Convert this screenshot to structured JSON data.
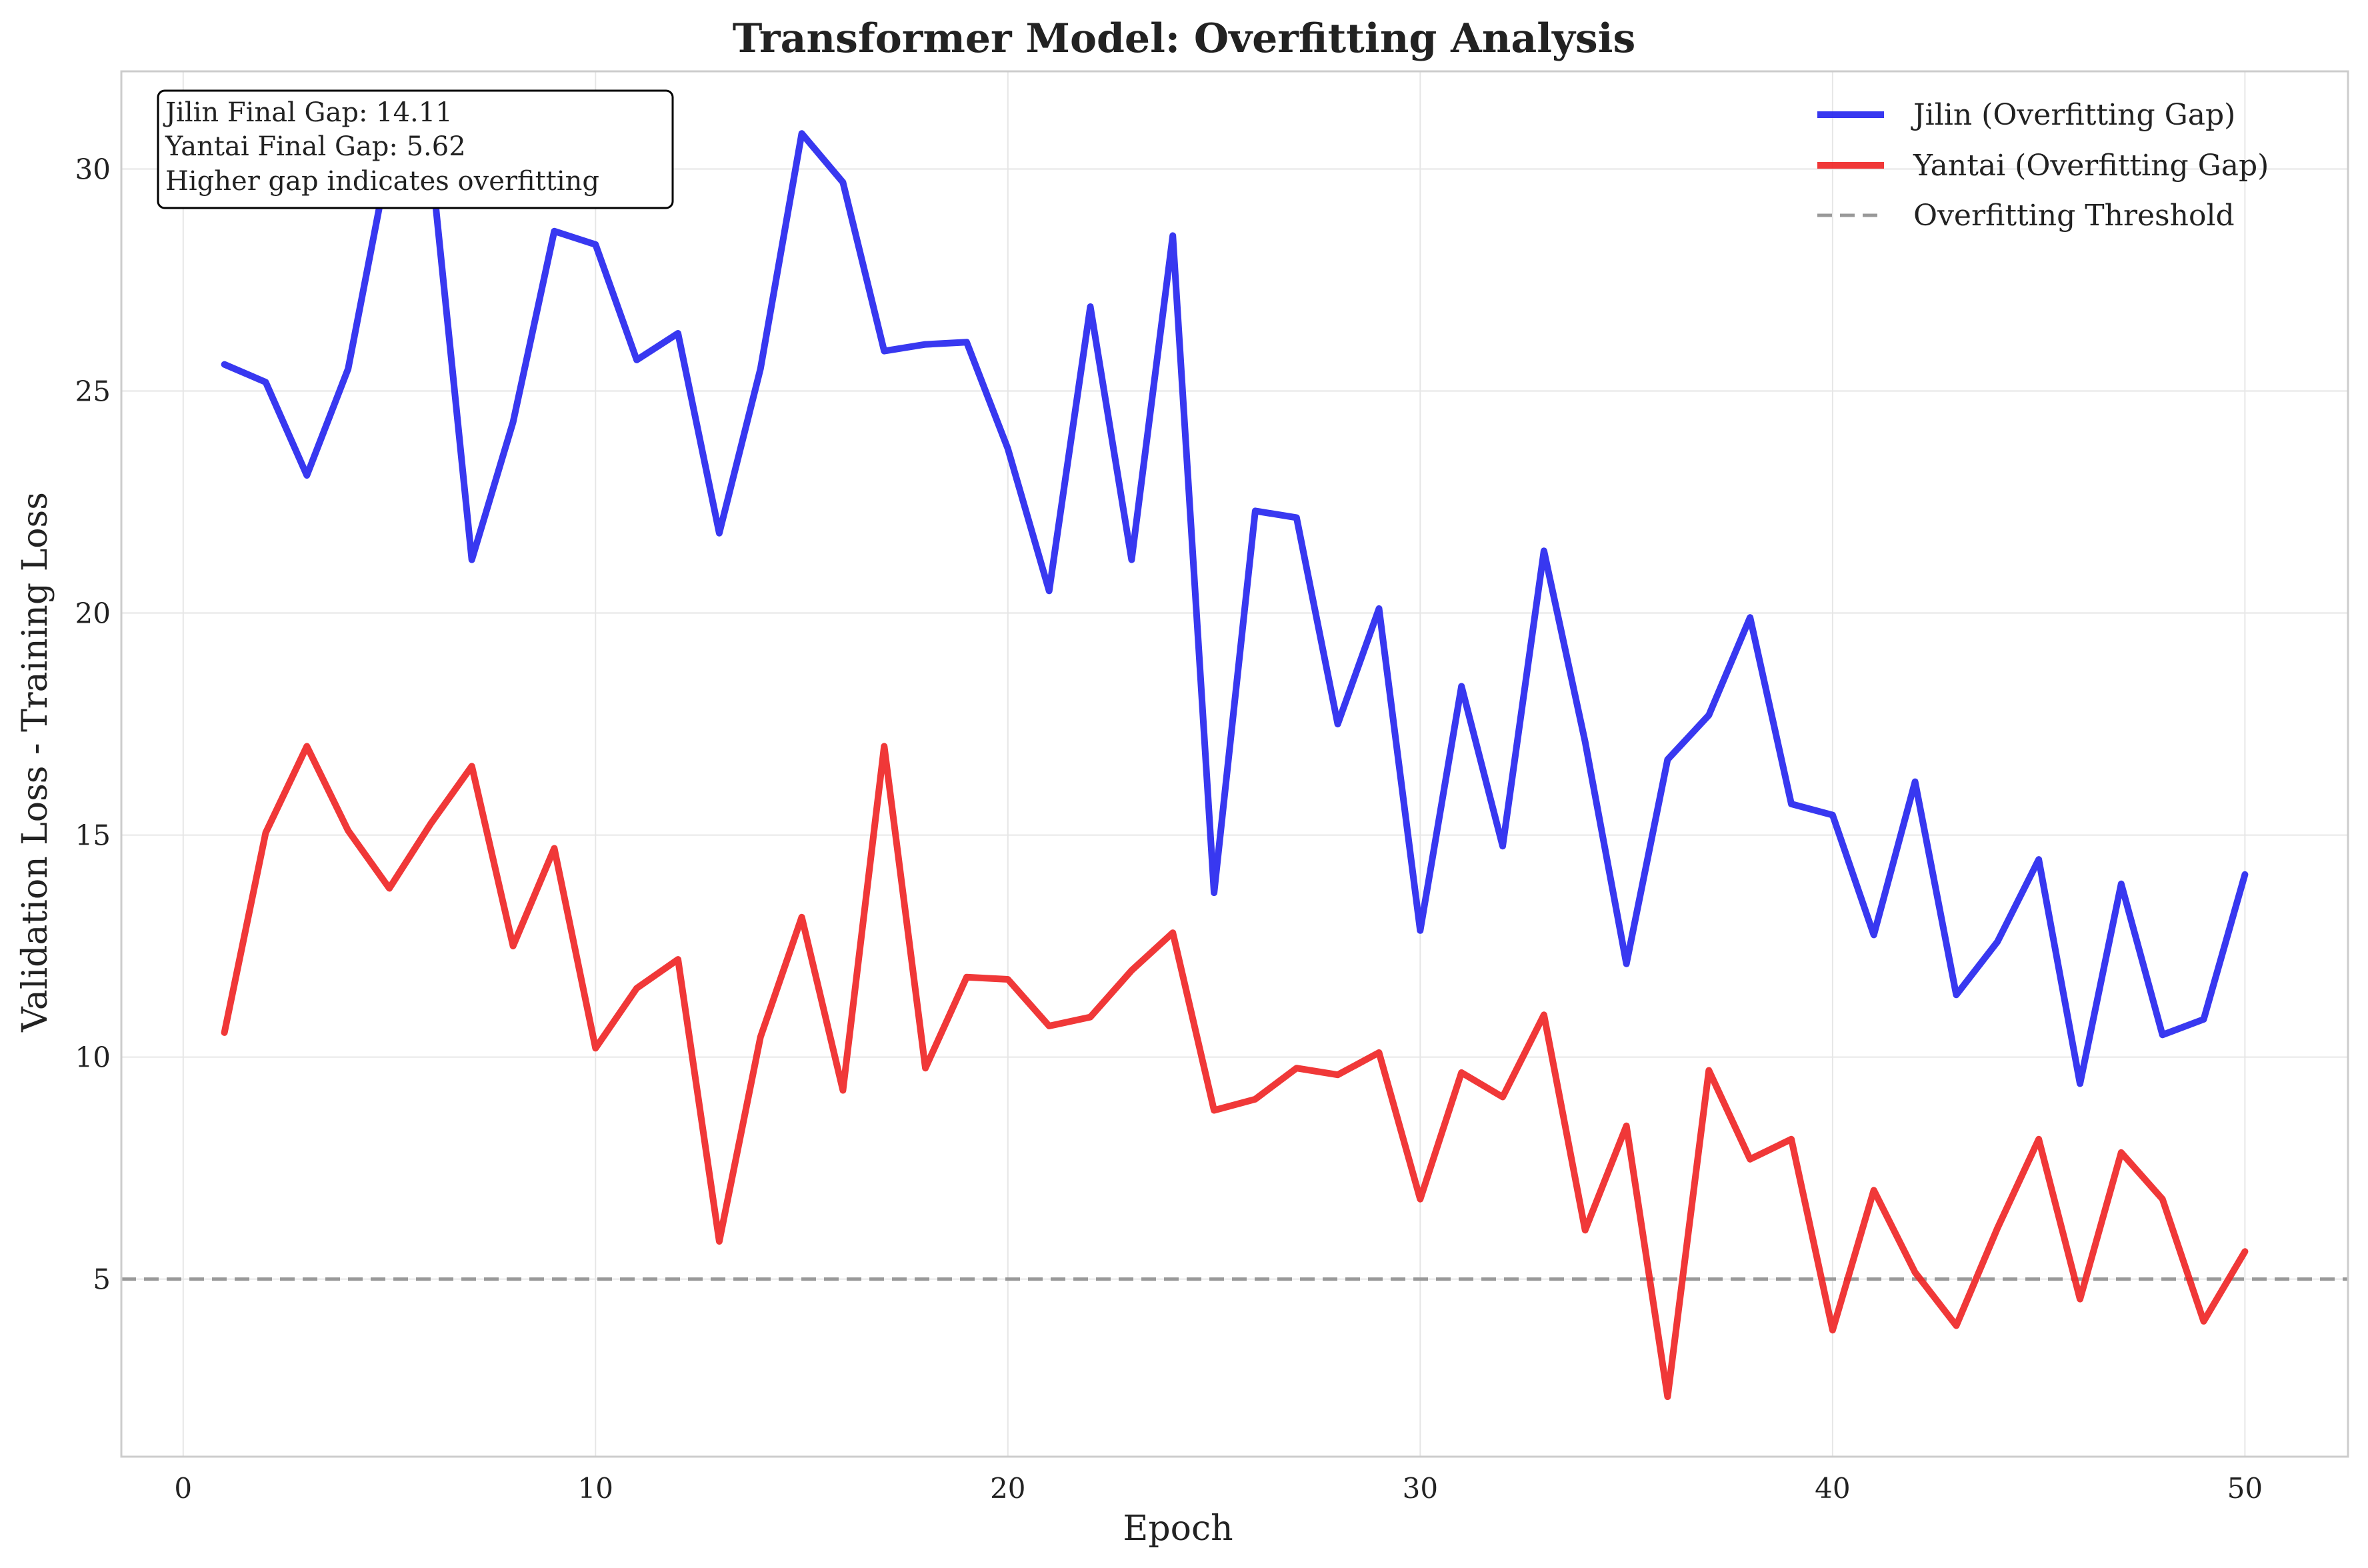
{
  "chart_data": {
    "type": "line",
    "title": "Transformer Model: Overfitting Analysis",
    "xlabel": "Epoch",
    "ylabel": "Validation Loss - Training Loss",
    "xlim": [
      -1.5,
      52.5
    ],
    "ylim": [
      1.0,
      32.2
    ],
    "xticks": [
      0,
      10,
      20,
      30,
      40,
      50
    ],
    "yticks": [
      5,
      10,
      15,
      20,
      25,
      30
    ],
    "grid": true,
    "legend_position": "top-right",
    "x": [
      1,
      2,
      3,
      4,
      5,
      6,
      7,
      8,
      9,
      10,
      11,
      12,
      13,
      14,
      15,
      16,
      17,
      18,
      19,
      20,
      21,
      22,
      23,
      24,
      25,
      26,
      27,
      28,
      29,
      30,
      31,
      32,
      33,
      34,
      35,
      36,
      37,
      38,
      39,
      40,
      41,
      42,
      43,
      44,
      45,
      46,
      47,
      48,
      49,
      50
    ],
    "series": [
      {
        "name": "Jilin (Overfitting Gap)",
        "color": "#2222ee",
        "values": [
          25.6,
          25.2,
          23.1,
          25.5,
          30.3,
          30.3,
          21.2,
          24.3,
          28.6,
          28.3,
          25.7,
          26.3,
          21.8,
          25.5,
          30.8,
          29.7,
          25.9,
          26.05,
          26.1,
          23.7,
          20.5,
          26.9,
          21.2,
          28.5,
          13.7,
          22.3,
          22.15,
          17.5,
          20.1,
          12.85,
          18.35,
          14.75,
          21.4,
          17.1,
          12.1,
          16.7,
          17.7,
          19.9,
          15.7,
          15.45,
          12.75,
          16.2,
          11.4,
          12.6,
          14.45,
          9.4,
          13.9,
          10.5,
          10.85,
          14.11
        ]
      },
      {
        "name": "Yantai (Overfitting Gap)",
        "color": "#ee2222",
        "values": [
          10.55,
          15.05,
          17.0,
          15.1,
          13.8,
          15.25,
          16.55,
          12.5,
          14.7,
          10.2,
          11.55,
          12.2,
          5.85,
          10.45,
          13.15,
          9.25,
          17.0,
          9.75,
          11.8,
          11.75,
          10.7,
          10.9,
          11.95,
          12.8,
          8.8,
          9.05,
          9.75,
          9.6,
          10.1,
          6.8,
          9.65,
          9.1,
          10.95,
          6.1,
          8.45,
          2.35,
          9.7,
          7.7,
          8.15,
          3.85,
          7.0,
          5.15,
          3.95,
          6.15,
          8.15,
          4.55,
          7.85,
          6.8,
          4.05,
          5.62
        ]
      }
    ],
    "threshold": {
      "name": "Overfitting Threshold",
      "value": 5,
      "color": "#999999"
    },
    "annotation": {
      "lines": [
        "Jilin Final Gap: 14.11",
        "Yantai Final Gap: 5.62",
        "Higher gap indicates overfitting"
      ]
    }
  }
}
